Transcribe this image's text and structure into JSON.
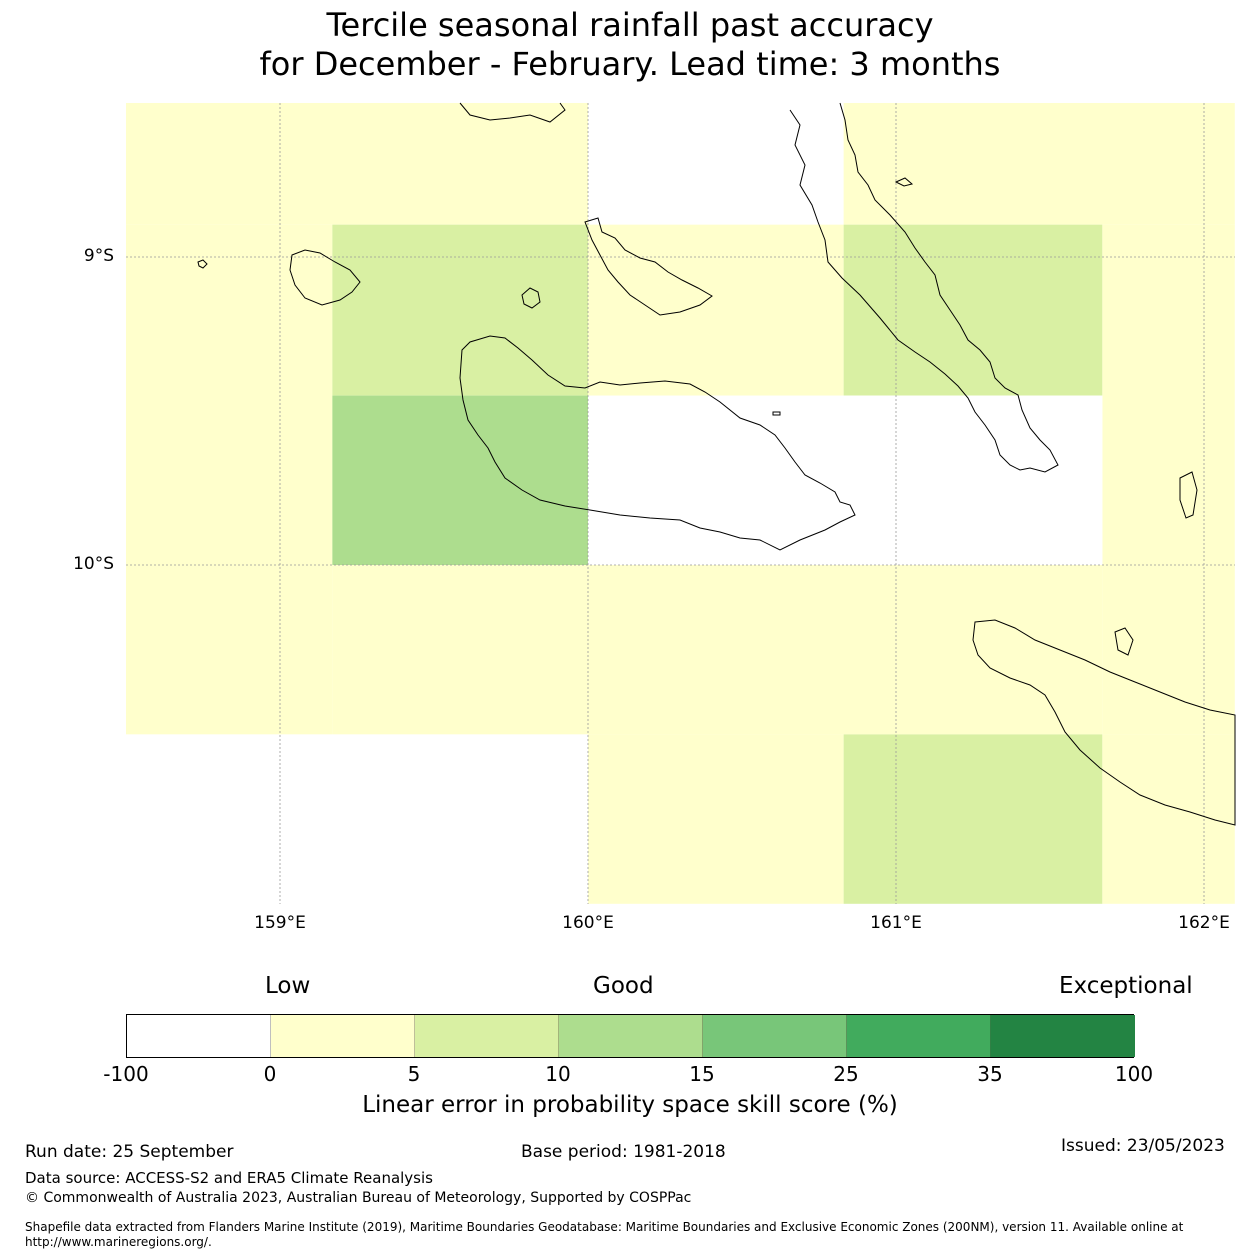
{
  "title": {
    "line1": "Tercile seasonal rainfall past accuracy",
    "line2": "for December - February. Lead time: 3 months"
  },
  "map": {
    "lat_labels": [
      "9°S",
      "10°S"
    ],
    "lon_labels": [
      "159°E",
      "160°E",
      "161°E",
      "162°E"
    ],
    "extent": {
      "lon_min": 158.5,
      "lon_max": 162.1,
      "lat_min": -11.1,
      "lat_max": -8.5
    },
    "cells": [
      {
        "lon0": 158.5,
        "lon1": 160.0,
        "lat0": -8.5,
        "lat1": -8.895,
        "skill": 2.5
      },
      {
        "lon0": 160.0,
        "lon1": 160.83,
        "lat0": -8.5,
        "lat1": -8.895,
        "skill": -50
      },
      {
        "lon0": 160.83,
        "lon1": 162.1,
        "lat0": -8.5,
        "lat1": -8.895,
        "skill": 2.5
      },
      {
        "lon0": 158.5,
        "lon1": 159.17,
        "lat0": -8.895,
        "lat1": -10.55,
        "skill": 2.5
      },
      {
        "lon0": 159.17,
        "lon1": 160.0,
        "lat0": -8.895,
        "lat1": -9.45,
        "skill": 7.5
      },
      {
        "lon0": 160.0,
        "lon1": 160.83,
        "lat0": -8.895,
        "lat1": -9.45,
        "skill": 2.5
      },
      {
        "lon0": 160.83,
        "lon1": 161.67,
        "lat0": -8.895,
        "lat1": -9.45,
        "skill": 7.5
      },
      {
        "lon0": 161.67,
        "lon1": 162.1,
        "lat0": -8.895,
        "lat1": -10.55,
        "skill": 2.5
      },
      {
        "lon0": 159.17,
        "lon1": 160.0,
        "lat0": -9.45,
        "lat1": -10.0,
        "skill": 12.5
      },
      {
        "lon0": 160.0,
        "lon1": 161.67,
        "lat0": -9.45,
        "lat1": -10.0,
        "skill": -50
      },
      {
        "lon0": 159.17,
        "lon1": 161.67,
        "lat0": -10.0,
        "lat1": -10.55,
        "skill": 2.5
      },
      {
        "lon0": 158.5,
        "lon1": 160.0,
        "lat0": -10.55,
        "lat1": -11.1,
        "skill": -50
      },
      {
        "lon0": 160.0,
        "lon1": 160.83,
        "lat0": -10.55,
        "lat1": -11.1,
        "skill": 2.5
      },
      {
        "lon0": 160.83,
        "lon1": 161.67,
        "lat0": -10.55,
        "lat1": -11.1,
        "skill": 7.5
      },
      {
        "lon0": 161.67,
        "lon1": 162.1,
        "lat0": -10.55,
        "lat1": -11.1,
        "skill": 2.5
      }
    ]
  },
  "legend": {
    "categories": [
      "Low",
      "Good",
      "Exceptional"
    ],
    "ticks": [
      "-100",
      "0",
      "5",
      "10",
      "15",
      "25",
      "35",
      "100"
    ],
    "colors": [
      "#ffffff",
      "#ffffcc",
      "#d9f0a3",
      "#addd8e",
      "#78c679",
      "#41ab5d",
      "#238443"
    ],
    "title": "Linear error in probability space skill score (%)"
  },
  "footer": {
    "run_date": "Run date: 25 September",
    "base_period": "Base period: 1981-2018",
    "issued": "Issued: 23/05/2023",
    "data_source": "Data source: ACCESS-S2 and ERA5 Climate Reanalysis",
    "copyright": "© Commonwealth of Australia 2023, Australian Bureau of Meteorology, Supported by COSPPac",
    "shapefile": "Shapefile data extracted from Flanders Marine Institute (2019), Maritime Boundaries Geodatabase: Maritime Boundaries and Exclusive Economic Zones (200NM), version 11. Available online at http://www.marineregions.org/."
  }
}
